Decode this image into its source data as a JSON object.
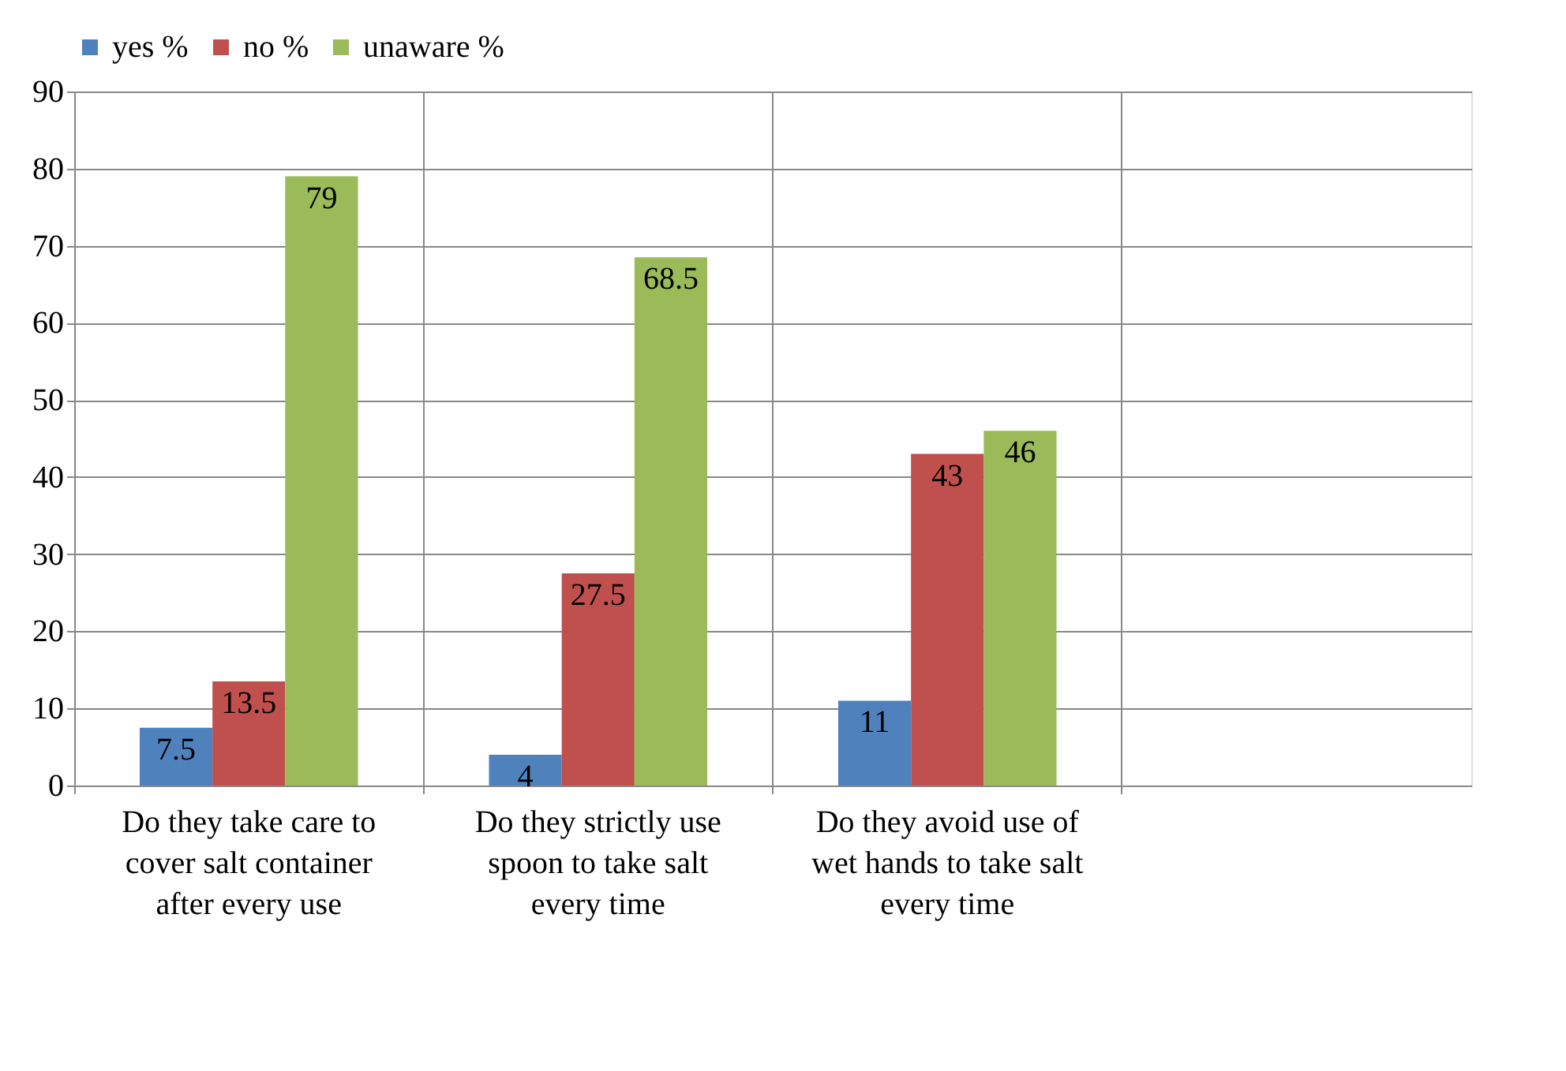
{
  "chart_data": {
    "type": "bar",
    "categories": [
      "Do they take care to cover salt container after every use",
      "Do they strictly use spoon to take salt every time",
      "Do they avoid use of wet hands to take salt every time",
      null
    ],
    "series": [
      {
        "name": "yes %",
        "color": "#4f81bd",
        "values": [
          7.5,
          4,
          11,
          null
        ]
      },
      {
        "name": "no %",
        "color": "#c0504d",
        "values": [
          13.5,
          27.5,
          43,
          null
        ]
      },
      {
        "name": "unaware %",
        "color": "#9bbb59",
        "values": [
          79,
          68.5,
          46,
          null
        ]
      }
    ],
    "ylim": [
      0,
      90
    ],
    "yticks": [
      0,
      10,
      20,
      30,
      40,
      50,
      60,
      70,
      80,
      90
    ],
    "grid": true,
    "legend": "top",
    "data_labels": true
  }
}
